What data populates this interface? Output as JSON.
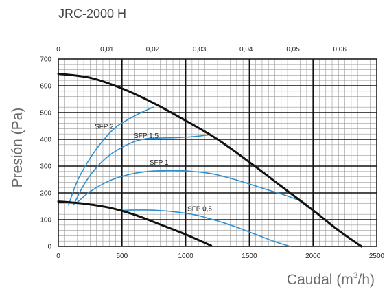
{
  "chart_data": {
    "type": "line",
    "title": "JRC-2000 H",
    "xlabel": "Caudal (m",
    "xlabel_sup": "3",
    "xlabel_end": "/h)",
    "ylabel": "Presión (Pa)",
    "xlim": [
      0,
      2500
    ],
    "ylim": [
      0,
      700
    ],
    "x_ticks": [
      0,
      500,
      1000,
      1500,
      2000,
      2500
    ],
    "y_ticks": [
      0,
      100,
      200,
      300,
      400,
      500,
      600,
      700
    ],
    "top_axis_ticks": [
      {
        "label": "0",
        "x": 0
      },
      {
        "label": "0,01",
        "x": 382
      },
      {
        "label": "0,02",
        "x": 741
      },
      {
        "label": "0,03",
        "x": 1108
      },
      {
        "label": "0,04",
        "x": 1475
      },
      {
        "label": "0,05",
        "x": 1843
      },
      {
        "label": "0,06",
        "x": 2210
      }
    ],
    "grid": true,
    "colors": {
      "fan_curve": "#111111",
      "sfp_curve": "#2e8fd0",
      "grid_major": "#111111",
      "grid_minor": "#9a9a9a",
      "frame": "#111111"
    },
    "series": [
      {
        "kind": "fan",
        "points": [
          [
            0,
            645
          ],
          [
            250,
            630
          ],
          [
            500,
            590
          ],
          [
            750,
            535
          ],
          [
            1000,
            470
          ],
          [
            1250,
            400
          ],
          [
            1500,
            315
          ],
          [
            1750,
            225
          ],
          [
            2000,
            135
          ],
          [
            2200,
            60
          ],
          [
            2380,
            0
          ]
        ]
      },
      {
        "kind": "fan",
        "points": [
          [
            0,
            168
          ],
          [
            200,
            160
          ],
          [
            400,
            145
          ],
          [
            600,
            118
          ],
          [
            800,
            82
          ],
          [
            1000,
            45
          ],
          [
            1200,
            3
          ]
        ]
      },
      {
        "kind": "sfp",
        "name": "SFP 2",
        "label_at": [
          360,
          440
        ],
        "points": [
          [
            80,
            155
          ],
          [
            150,
            245
          ],
          [
            250,
            330
          ],
          [
            350,
            395
          ],
          [
            450,
            445
          ],
          [
            550,
            475
          ],
          [
            650,
            500
          ],
          [
            745,
            520
          ]
        ]
      },
      {
        "kind": "sfp",
        "name": "SFP 1,5",
        "label_at": [
          690,
          405
        ],
        "points": [
          [
            120,
            155
          ],
          [
            200,
            230
          ],
          [
            300,
            295
          ],
          [
            400,
            340
          ],
          [
            500,
            370
          ],
          [
            600,
            392
          ],
          [
            700,
            403
          ],
          [
            800,
            405
          ],
          [
            900,
            406
          ],
          [
            1000,
            408
          ],
          [
            1100,
            412
          ],
          [
            1200,
            418
          ]
        ]
      },
      {
        "kind": "sfp",
        "name": "SFP 1",
        "label_at": [
          790,
          305
        ],
        "points": [
          [
            150,
            165
          ],
          [
            250,
            205
          ],
          [
            400,
            245
          ],
          [
            550,
            268
          ],
          [
            700,
            280
          ],
          [
            850,
            283
          ],
          [
            1000,
            282
          ],
          [
            1200,
            272
          ],
          [
            1400,
            248
          ],
          [
            1600,
            218
          ],
          [
            1800,
            188
          ],
          [
            1950,
            160
          ]
        ]
      },
      {
        "kind": "sfp",
        "name": "SFP 0,5",
        "label_at": [
          1110,
          132
        ],
        "points": [
          [
            500,
            135
          ],
          [
            600,
            136
          ],
          [
            700,
            136
          ],
          [
            800,
            134
          ],
          [
            900,
            130
          ],
          [
            1000,
            124
          ],
          [
            1100,
            115
          ],
          [
            1200,
            102
          ],
          [
            1300,
            88
          ],
          [
            1400,
            72
          ],
          [
            1500,
            54
          ],
          [
            1600,
            36
          ],
          [
            1700,
            18
          ],
          [
            1820,
            0
          ]
        ]
      }
    ]
  }
}
